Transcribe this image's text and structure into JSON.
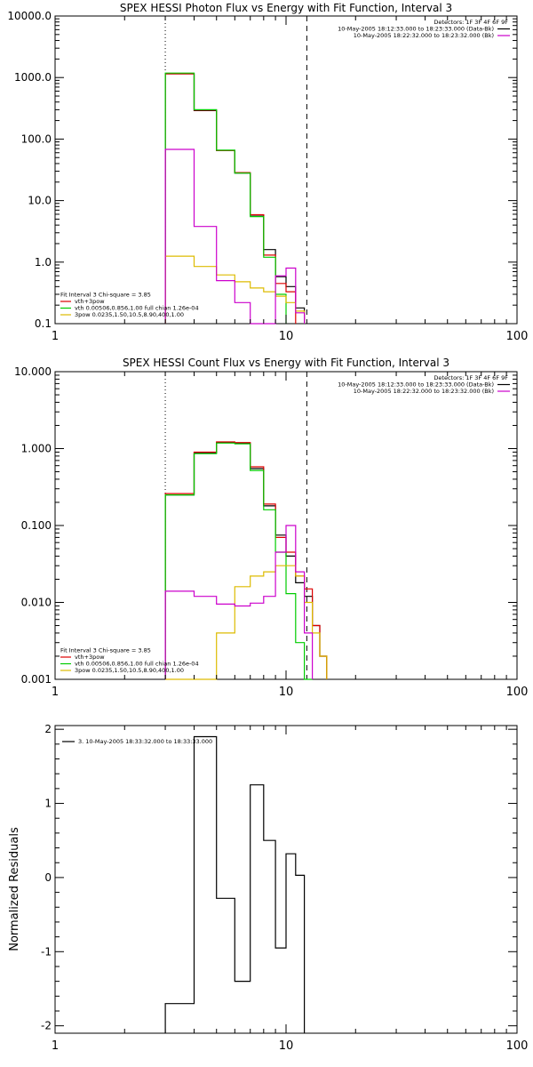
{
  "chart_data": [
    {
      "type": "line",
      "title": "SPEX HESSI Photon Flux vs Energy with Fit Function, Interval 3",
      "xscale": "log",
      "yscale": "log",
      "xlim": [
        1,
        100
      ],
      "ylim": [
        0.1,
        10000
      ],
      "xticks": [
        {
          "v": 1,
          "label": "1"
        },
        {
          "v": 10,
          "label": "10"
        },
        {
          "v": 100,
          "label": "100"
        }
      ],
      "yticks": [
        {
          "v": 0.1,
          "label": "0.1"
        },
        {
          "v": 1,
          "label": "1.0"
        },
        {
          "v": 10,
          "label": "10.0"
        },
        {
          "v": 100,
          "label": "100.0"
        },
        {
          "v": 1000,
          "label": "1000.0"
        },
        {
          "v": 10000,
          "label": "10000.0"
        }
      ],
      "vlines": [
        {
          "x": 3,
          "style": "dotted"
        },
        {
          "x": 12.3,
          "style": "dashed"
        }
      ],
      "legend_top_right": [
        {
          "text": "Detectors: 1F 3F 4F 6F 9F",
          "color": "#000000",
          "line": false
        },
        {
          "text": "10-May-2005 18:12:33.000 to 18:23:33.000 (Data-Bk)",
          "color": "#000000",
          "line": true
        },
        {
          "text": "10-May-2005 18:22:32.000 to 18:23:32.000 (Bk)",
          "color": "#cc00cc",
          "line": true
        }
      ],
      "legend_bottom_left": [
        {
          "text": "Fit Interval 3   Chi-square = 3.85",
          "color": "#000000",
          "line": false
        },
        {
          "text": "vth+3pow",
          "color": "#dd0000",
          "line": true
        },
        {
          "text": "vth 0.00506,0.856,1.00  full chian 1.26e-04",
          "color": "#00cc00",
          "line": true
        },
        {
          "text": "3pow 0.0235,1.50,10.5,8.90,400,1.00",
          "color": "#ddbb00",
          "line": true
        }
      ],
      "bin_edges": [
        3,
        4,
        5,
        6,
        7,
        8,
        9,
        10,
        11,
        12
      ],
      "series": [
        {
          "key": "data",
          "color": "#000000",
          "values": [
            1150,
            290,
            65,
            28,
            5.8,
            1.6,
            0.58,
            0.4,
            0.18
          ]
        },
        {
          "key": "vth+3pow",
          "color": "#dd0000",
          "values": [
            1150,
            295,
            65,
            28.5,
            5.9,
            1.3,
            0.45,
            0.33,
            null
          ]
        },
        {
          "key": "vth",
          "color": "#00cc00",
          "values": [
            1180,
            300,
            66,
            28,
            5.5,
            1.2,
            0.3,
            null,
            null
          ]
        },
        {
          "key": "3pow",
          "color": "#ddbb00",
          "values": [
            1.25,
            0.85,
            0.62,
            0.48,
            0.38,
            0.33,
            0.28,
            0.22,
            0.16
          ]
        },
        {
          "key": "bk",
          "color": "#cc00cc",
          "values": [
            68,
            3.8,
            0.5,
            0.22,
            0.095,
            0.1,
            0.6,
            0.8,
            0.15
          ]
        }
      ]
    },
    {
      "type": "line",
      "title": "SPEX HESSI Count Flux vs Energy with Fit Function, Interval 3",
      "xscale": "log",
      "yscale": "log",
      "xlim": [
        1,
        100
      ],
      "ylim": [
        0.001,
        10
      ],
      "xticks": [
        {
          "v": 1,
          "label": "1"
        },
        {
          "v": 10,
          "label": "10"
        },
        {
          "v": 100,
          "label": "100"
        }
      ],
      "yticks": [
        {
          "v": 0.001,
          "label": "0.001"
        },
        {
          "v": 0.01,
          "label": "0.010"
        },
        {
          "v": 0.1,
          "label": "0.100"
        },
        {
          "v": 1,
          "label": "1.000"
        },
        {
          "v": 10,
          "label": "10.000"
        }
      ],
      "vlines": [
        {
          "x": 3,
          "style": "dotted"
        },
        {
          "x": 12.3,
          "style": "dashed"
        }
      ],
      "legend_top_right": [
        {
          "text": "Detectors: 1F 3F 4F 6F 9F",
          "color": "#000000",
          "line": false
        },
        {
          "text": "10-May-2005 18:12:33.000 to 18:23:33.000 (Data-Bk)",
          "color": "#000000",
          "line": true
        },
        {
          "text": "10-May-2005 18:22:32.000 to 18:23:32.000 (Bk)",
          "color": "#cc00cc",
          "line": true
        }
      ],
      "legend_bottom_left": [
        {
          "text": "Fit Interval 3   Chi-square = 3.85",
          "color": "#000000",
          "line": false
        },
        {
          "text": "vth+3pow",
          "color": "#dd0000",
          "line": true
        },
        {
          "text": "vth 0.00506,0.856,1.00  full chian 1.26e-04",
          "color": "#00cc00",
          "line": true
        },
        {
          "text": "3pow 0.0235,1.50,10.5,8.90,400,1.00",
          "color": "#ddbb00",
          "line": true
        }
      ],
      "bin_edges": [
        3,
        4,
        5,
        6,
        7,
        8,
        9,
        10,
        11,
        12,
        13,
        14,
        15
      ],
      "series": [
        {
          "key": "data",
          "color": "#000000",
          "values": [
            0.25,
            0.88,
            1.2,
            1.18,
            0.55,
            0.18,
            0.075,
            0.04,
            0.018,
            0.012,
            0.005,
            0.002
          ]
        },
        {
          "key": "vth+3pow",
          "color": "#dd0000",
          "values": [
            0.26,
            0.9,
            1.22,
            1.2,
            0.58,
            0.19,
            0.07,
            0.045,
            0.022,
            0.015,
            0.005,
            0.002
          ]
        },
        {
          "key": "vth",
          "color": "#00cc00",
          "values": [
            0.25,
            0.86,
            1.18,
            1.15,
            0.52,
            0.16,
            0.045,
            0.013,
            0.003,
            0.0008,
            null,
            null
          ]
        },
        {
          "key": "3pow",
          "color": "#ddbb00",
          "values": [
            0.001,
            0.0009,
            0.004,
            0.016,
            0.022,
            0.025,
            0.03,
            0.03,
            0.022,
            0.01,
            0.004,
            0.002
          ]
        },
        {
          "key": "bk",
          "color": "#cc00cc",
          "values": [
            0.014,
            0.012,
            0.0095,
            0.009,
            0.0098,
            0.012,
            0.045,
            0.1,
            0.025,
            0.004,
            null,
            null
          ]
        }
      ]
    },
    {
      "type": "line",
      "title": "",
      "ylabel": "Normalized Residuals",
      "xscale": "log",
      "yscale": "linear",
      "xlim": [
        1,
        100
      ],
      "ylim": [
        -2.1,
        2.05
      ],
      "xticks": [
        {
          "v": 1,
          "label": "1"
        },
        {
          "v": 10,
          "label": "10"
        },
        {
          "v": 100,
          "label": "100"
        }
      ],
      "yticks": [
        {
          "v": -2,
          "label": "-2"
        },
        {
          "v": -1,
          "label": "-1"
        },
        {
          "v": 0,
          "label": "0"
        },
        {
          "v": 1,
          "label": "1"
        },
        {
          "v": 2,
          "label": "2"
        }
      ],
      "legend_top_left": [
        {
          "text": "3. 10-May-2005 18:33:32.000 to 18:33:33.000",
          "color": "#000000",
          "line": true
        }
      ],
      "bin_edges": [
        3,
        4,
        5,
        6,
        7,
        8,
        9,
        10,
        11,
        12
      ],
      "series": [
        {
          "key": "residuals",
          "color": "#000000",
          "values": [
            -1.7,
            1.9,
            -0.28,
            -1.4,
            1.25,
            0.5,
            -0.95,
            0.32,
            0.03
          ]
        }
      ]
    }
  ]
}
